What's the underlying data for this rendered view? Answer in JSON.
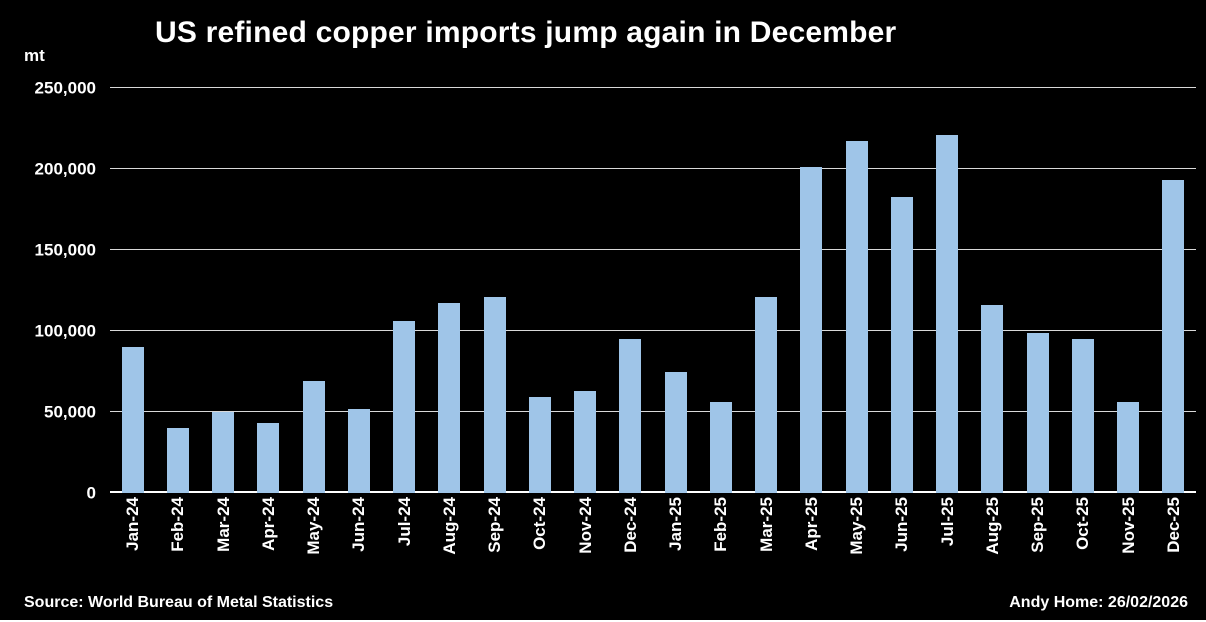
{
  "title": "US refined copper imports jump again in December",
  "unit_label": "mt",
  "footer": {
    "source": "Source: World Bureau of Metal Statistics",
    "credit": "Andy Home: 26/02/2026"
  },
  "colors": {
    "background": "#000000",
    "bar": "#9fc5e8",
    "grid": "#ffffff",
    "text": "#ffffff"
  },
  "chart_data": {
    "type": "bar",
    "title": "US refined copper imports jump again in December",
    "xlabel": "",
    "ylabel": "mt",
    "ylim": [
      0,
      250000
    ],
    "yticks": [
      0,
      50000,
      100000,
      150000,
      200000,
      250000
    ],
    "grid": true,
    "legend": "none",
    "categories": [
      "Jan-24",
      "Feb-24",
      "Mar-24",
      "Apr-24",
      "May-24",
      "Jun-24",
      "Jul-24",
      "Aug-24",
      "Sep-24",
      "Oct-24",
      "Nov-24",
      "Dec-24",
      "Jan-25",
      "Feb-25",
      "Mar-25",
      "Apr-25",
      "May-25",
      "Jun-25",
      "Jul-25",
      "Aug-25",
      "Sep-25",
      "Oct-25",
      "Nov-25",
      "Dec-25"
    ],
    "values": [
      90000,
      40000,
      50000,
      43000,
      69000,
      52000,
      106000,
      117000,
      121000,
      59000,
      63000,
      95000,
      75000,
      56000,
      121000,
      201000,
      217000,
      183000,
      221000,
      116000,
      99000,
      95000,
      56000,
      193000
    ]
  }
}
